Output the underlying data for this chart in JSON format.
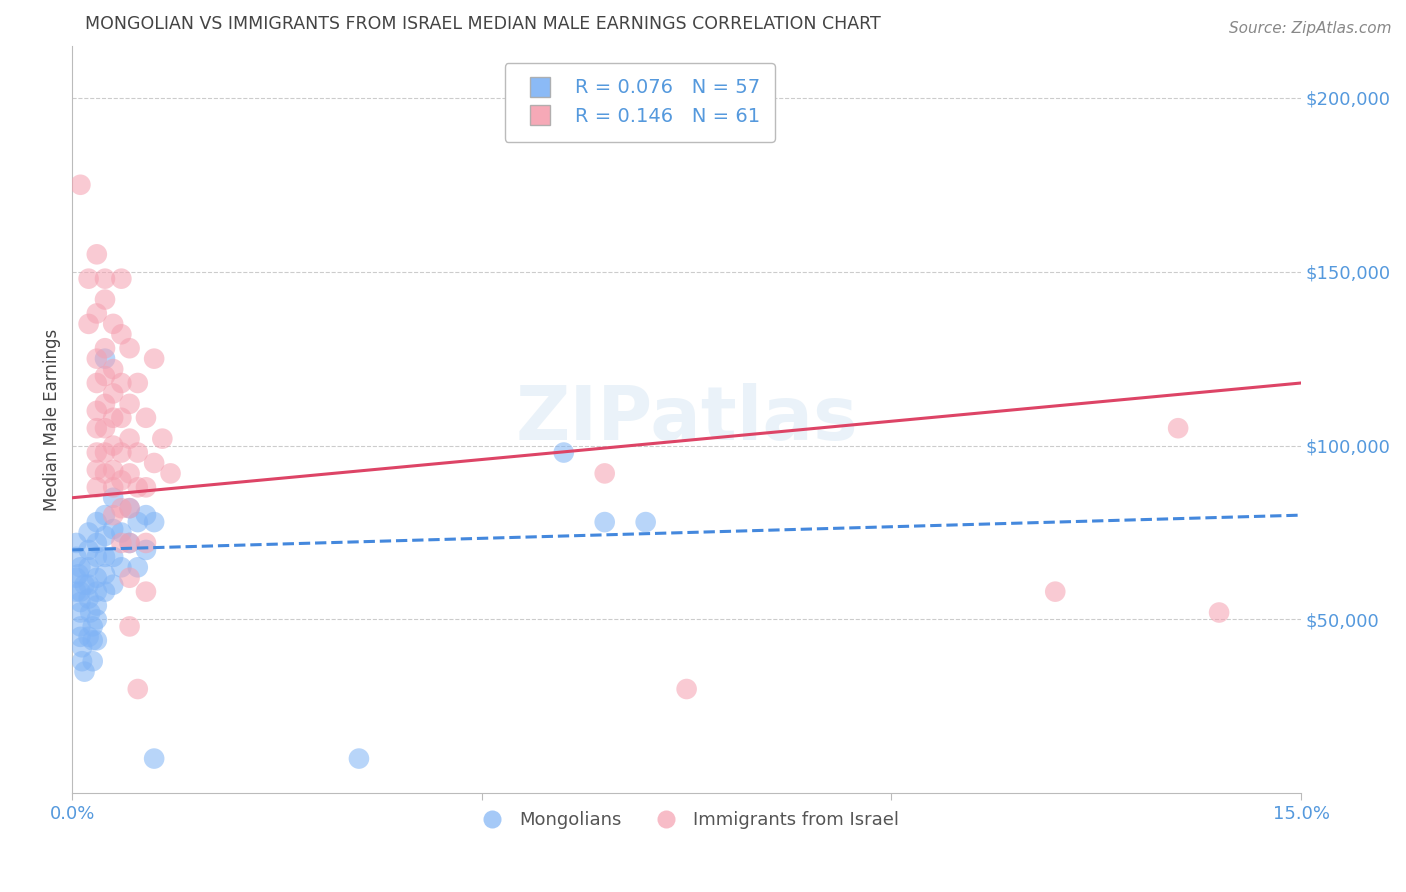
{
  "title": "MONGOLIAN VS IMMIGRANTS FROM ISRAEL MEDIAN MALE EARNINGS CORRELATION CHART",
  "source": "Source: ZipAtlas.com",
  "ylabel_values": [
    50000,
    100000,
    150000,
    200000
  ],
  "ylabel_labels": [
    "$50,000",
    "$100,000",
    "$150,000",
    "$200,000"
  ],
  "xmin": 0.0,
  "xmax": 0.15,
  "ymin": 0,
  "ymax": 215000,
  "watermark": "ZIPatlas",
  "legend_blue_R": "0.076",
  "legend_blue_N": "57",
  "legend_pink_R": "0.146",
  "legend_pink_N": "61",
  "ylabel": "Median Male Earnings",
  "blue_color": "#7fb3f5",
  "pink_color": "#f5a0b0",
  "blue_scatter": [
    [
      0.0005,
      72000
    ],
    [
      0.0005,
      68000
    ],
    [
      0.0008,
      63000
    ],
    [
      0.001,
      58000
    ],
    [
      0.001,
      55000
    ],
    [
      0.001,
      52000
    ],
    [
      0.001,
      48000
    ],
    [
      0.001,
      45000
    ],
    [
      0.0012,
      42000
    ],
    [
      0.0012,
      38000
    ],
    [
      0.0015,
      35000
    ],
    [
      0.002,
      75000
    ],
    [
      0.002,
      70000
    ],
    [
      0.002,
      65000
    ],
    [
      0.002,
      60000
    ],
    [
      0.002,
      56000
    ],
    [
      0.0022,
      52000
    ],
    [
      0.0025,
      48000
    ],
    [
      0.0025,
      44000
    ],
    [
      0.003,
      78000
    ],
    [
      0.003,
      72000
    ],
    [
      0.003,
      68000
    ],
    [
      0.003,
      62000
    ],
    [
      0.003,
      58000
    ],
    [
      0.003,
      54000
    ],
    [
      0.003,
      50000
    ],
    [
      0.004,
      125000
    ],
    [
      0.004,
      80000
    ],
    [
      0.004,
      74000
    ],
    [
      0.004,
      68000
    ],
    [
      0.004,
      63000
    ],
    [
      0.004,
      58000
    ],
    [
      0.005,
      85000
    ],
    [
      0.005,
      76000
    ],
    [
      0.005,
      68000
    ],
    [
      0.005,
      60000
    ],
    [
      0.006,
      75000
    ],
    [
      0.006,
      65000
    ],
    [
      0.007,
      82000
    ],
    [
      0.007,
      72000
    ],
    [
      0.008,
      78000
    ],
    [
      0.008,
      65000
    ],
    [
      0.009,
      80000
    ],
    [
      0.009,
      70000
    ],
    [
      0.01,
      78000
    ],
    [
      0.06,
      98000
    ],
    [
      0.065,
      78000
    ],
    [
      0.07,
      78000
    ],
    [
      0.01,
      10000
    ],
    [
      0.035,
      10000
    ],
    [
      0.0005,
      62000
    ],
    [
      0.0005,
      58000
    ],
    [
      0.001,
      65000
    ],
    [
      0.0015,
      60000
    ],
    [
      0.002,
      45000
    ],
    [
      0.0025,
      38000
    ],
    [
      0.003,
      44000
    ]
  ],
  "pink_scatter": [
    [
      0.001,
      175000
    ],
    [
      0.002,
      148000
    ],
    [
      0.002,
      135000
    ],
    [
      0.003,
      155000
    ],
    [
      0.003,
      138000
    ],
    [
      0.003,
      125000
    ],
    [
      0.003,
      118000
    ],
    [
      0.003,
      110000
    ],
    [
      0.003,
      105000
    ],
    [
      0.003,
      98000
    ],
    [
      0.003,
      93000
    ],
    [
      0.004,
      148000
    ],
    [
      0.004,
      142000
    ],
    [
      0.004,
      128000
    ],
    [
      0.004,
      120000
    ],
    [
      0.004,
      112000
    ],
    [
      0.004,
      105000
    ],
    [
      0.004,
      98000
    ],
    [
      0.004,
      92000
    ],
    [
      0.005,
      135000
    ],
    [
      0.005,
      122000
    ],
    [
      0.005,
      115000
    ],
    [
      0.005,
      108000
    ],
    [
      0.005,
      100000
    ],
    [
      0.005,
      93000
    ],
    [
      0.005,
      80000
    ],
    [
      0.006,
      148000
    ],
    [
      0.006,
      132000
    ],
    [
      0.006,
      118000
    ],
    [
      0.006,
      108000
    ],
    [
      0.006,
      98000
    ],
    [
      0.006,
      90000
    ],
    [
      0.006,
      82000
    ],
    [
      0.006,
      72000
    ],
    [
      0.007,
      128000
    ],
    [
      0.007,
      112000
    ],
    [
      0.007,
      102000
    ],
    [
      0.007,
      92000
    ],
    [
      0.007,
      82000
    ],
    [
      0.007,
      72000
    ],
    [
      0.007,
      62000
    ],
    [
      0.008,
      118000
    ],
    [
      0.008,
      98000
    ],
    [
      0.008,
      88000
    ],
    [
      0.009,
      108000
    ],
    [
      0.009,
      88000
    ],
    [
      0.009,
      72000
    ],
    [
      0.009,
      58000
    ],
    [
      0.01,
      125000
    ],
    [
      0.01,
      95000
    ],
    [
      0.011,
      102000
    ],
    [
      0.012,
      92000
    ],
    [
      0.007,
      48000
    ],
    [
      0.008,
      30000
    ],
    [
      0.065,
      92000
    ],
    [
      0.075,
      30000
    ],
    [
      0.12,
      58000
    ],
    [
      0.135,
      105000
    ],
    [
      0.14,
      52000
    ],
    [
      0.003,
      88000
    ],
    [
      0.005,
      88000
    ]
  ],
  "blue_line_x": [
    0.0,
    0.15
  ],
  "blue_line_y": [
    70000,
    80000
  ],
  "pink_line_x": [
    0.0,
    0.15
  ],
  "pink_line_y": [
    85000,
    118000
  ],
  "background_color": "#ffffff",
  "grid_color": "#cccccc",
  "title_color": "#444444",
  "tick_label_color": "#5599dd"
}
